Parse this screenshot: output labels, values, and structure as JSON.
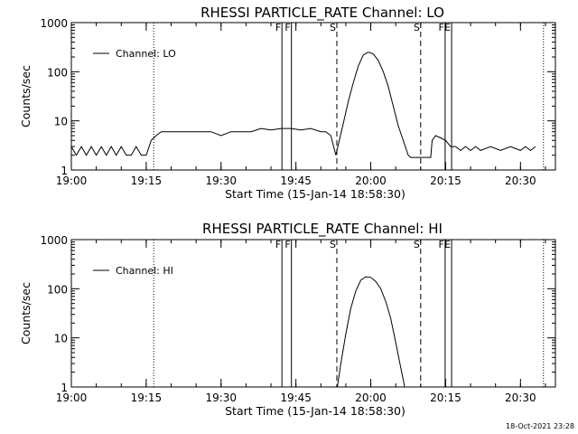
{
  "timestamp": "18-Oct-2021 23:28",
  "chart_data": [
    {
      "type": "line",
      "title": "RHESSI PARTICLE_RATE Channel: LO",
      "xlabel": "Start Time (15-Jan-14 18:58:30)",
      "ylabel": "Counts/sec",
      "yscale": "log",
      "ylim": [
        1,
        1000
      ],
      "xlim": [
        "19:00",
        "20:37"
      ],
      "x_ticks": [
        "19:00",
        "19:15",
        "19:30",
        "19:45",
        "20:00",
        "20:15",
        "20:30"
      ],
      "y_ticks": [
        "1",
        "10",
        "100",
        "1000"
      ],
      "legend": {
        "label": "Channel: LO",
        "position": "top-left"
      },
      "markers": [
        {
          "label": "F",
          "time": "19:42.2",
          "style": "solid"
        },
        {
          "label": "F",
          "time": "19:44.1",
          "style": "solid"
        },
        {
          "label": "S",
          "time": "19:53.2",
          "style": "dashed"
        },
        {
          "label": "S",
          "time": "20:10.0",
          "style": "dashed"
        },
        {
          "label": "F",
          "time": "20:14.9",
          "style": "solid"
        },
        {
          "label": "E",
          "time": "20:16.2",
          "style": "solid"
        },
        {
          "label": "",
          "time": "19:16.5",
          "style": "dotted"
        },
        {
          "label": "",
          "time": "20:34.6",
          "style": "dotted"
        }
      ],
      "series": [
        {
          "name": "Channel: LO",
          "x": [
            "19:00.0",
            "19:01.0",
            "19:02.0",
            "19:03.0",
            "19:04.0",
            "19:05.0",
            "19:06.0",
            "19:07.0",
            "19:08.0",
            "19:09.0",
            "19:10.0",
            "19:11.0",
            "19:12.0",
            "19:13.0",
            "19:14.0",
            "19:15.0",
            "19:16.0",
            "19:17.0",
            "19:18.0",
            "19:20.0",
            "19:24.0",
            "19:28.0",
            "19:30.0",
            "19:32.0",
            "19:34.0",
            "19:36.0",
            "19:38.0",
            "19:40.0",
            "19:42.0",
            "19:44.0",
            "19:46.0",
            "19:48.0",
            "19:50.0",
            "19:51.0",
            "19:52.0",
            "19:53.0",
            "19:53.7",
            "19:54.5",
            "19:55.5",
            "19:56.5",
            "19:57.5",
            "19:58.5",
            "19:59.5",
            "20:00.5",
            "20:01.5",
            "20:02.5",
            "20:03.5",
            "20:04.5",
            "20:05.5",
            "20:06.5",
            "20:07.5",
            "20:08.0",
            "20:08.5",
            "20:12.0",
            "20:12.3",
            "20:13.0",
            "20:14.0",
            "20:15.0",
            "20:16.0",
            "20:17.0",
            "20:18.0",
            "20:19.0",
            "20:20.0",
            "20:21.0",
            "20:22.0",
            "20:24.0",
            "20:26.0",
            "20:28.0",
            "20:30.0",
            "20:31.0",
            "20:32.0",
            "20:33.0"
          ],
          "y": [
            3,
            2,
            3,
            2,
            3,
            2,
            3,
            2,
            3,
            2,
            3,
            2,
            2,
            3,
            2,
            2,
            4,
            5,
            6,
            6,
            6,
            6,
            5,
            6,
            6,
            6,
            7,
            6.5,
            7,
            7,
            6.5,
            7,
            6,
            6,
            5,
            2,
            4,
            9,
            25,
            60,
            130,
            220,
            250,
            230,
            170,
            100,
            50,
            20,
            8,
            4,
            2,
            1.8,
            1.8,
            1.8,
            4,
            5,
            4.5,
            4,
            3,
            3,
            2.5,
            3,
            2.5,
            3,
            2.5,
            3,
            2.5,
            3,
            2.5,
            3,
            2.5,
            3
          ]
        }
      ]
    },
    {
      "type": "line",
      "title": "RHESSI PARTICLE_RATE Channel: HI",
      "xlabel": "Start Time (15-Jan-14 18:58:30)",
      "ylabel": "Counts/sec",
      "yscale": "log",
      "ylim": [
        1,
        1000
      ],
      "xlim": [
        "19:00",
        "20:37"
      ],
      "x_ticks": [
        "19:00",
        "19:15",
        "19:30",
        "19:45",
        "20:00",
        "20:15",
        "20:30"
      ],
      "y_ticks": [
        "1",
        "10",
        "100",
        "1000"
      ],
      "legend": {
        "label": "Channel: HI",
        "position": "top-left"
      },
      "markers": [
        {
          "label": "F",
          "time": "19:42.2",
          "style": "solid"
        },
        {
          "label": "F",
          "time": "19:44.1",
          "style": "solid"
        },
        {
          "label": "S",
          "time": "19:53.2",
          "style": "dashed"
        },
        {
          "label": "S",
          "time": "20:10.0",
          "style": "dashed"
        },
        {
          "label": "F",
          "time": "20:14.9",
          "style": "solid"
        },
        {
          "label": "E",
          "time": "20:16.2",
          "style": "solid"
        },
        {
          "label": "",
          "time": "19:16.5",
          "style": "dotted"
        },
        {
          "label": "",
          "time": "20:34.6",
          "style": "dotted"
        }
      ],
      "series": [
        {
          "name": "Channel: HI",
          "x": [
            "19:53.3",
            "19:54.0",
            "19:55.0",
            "19:56.0",
            "19:57.0",
            "19:58.0",
            "19:59.0",
            "20:00.0",
            "20:01.0",
            "20:02.0",
            "20:03.0",
            "20:04.0",
            "20:05.0",
            "20:06.0",
            "20:06.8"
          ],
          "y": [
            1,
            3,
            12,
            40,
            90,
            150,
            175,
            170,
            140,
            100,
            55,
            25,
            8,
            2.5,
            1
          ]
        }
      ]
    }
  ]
}
